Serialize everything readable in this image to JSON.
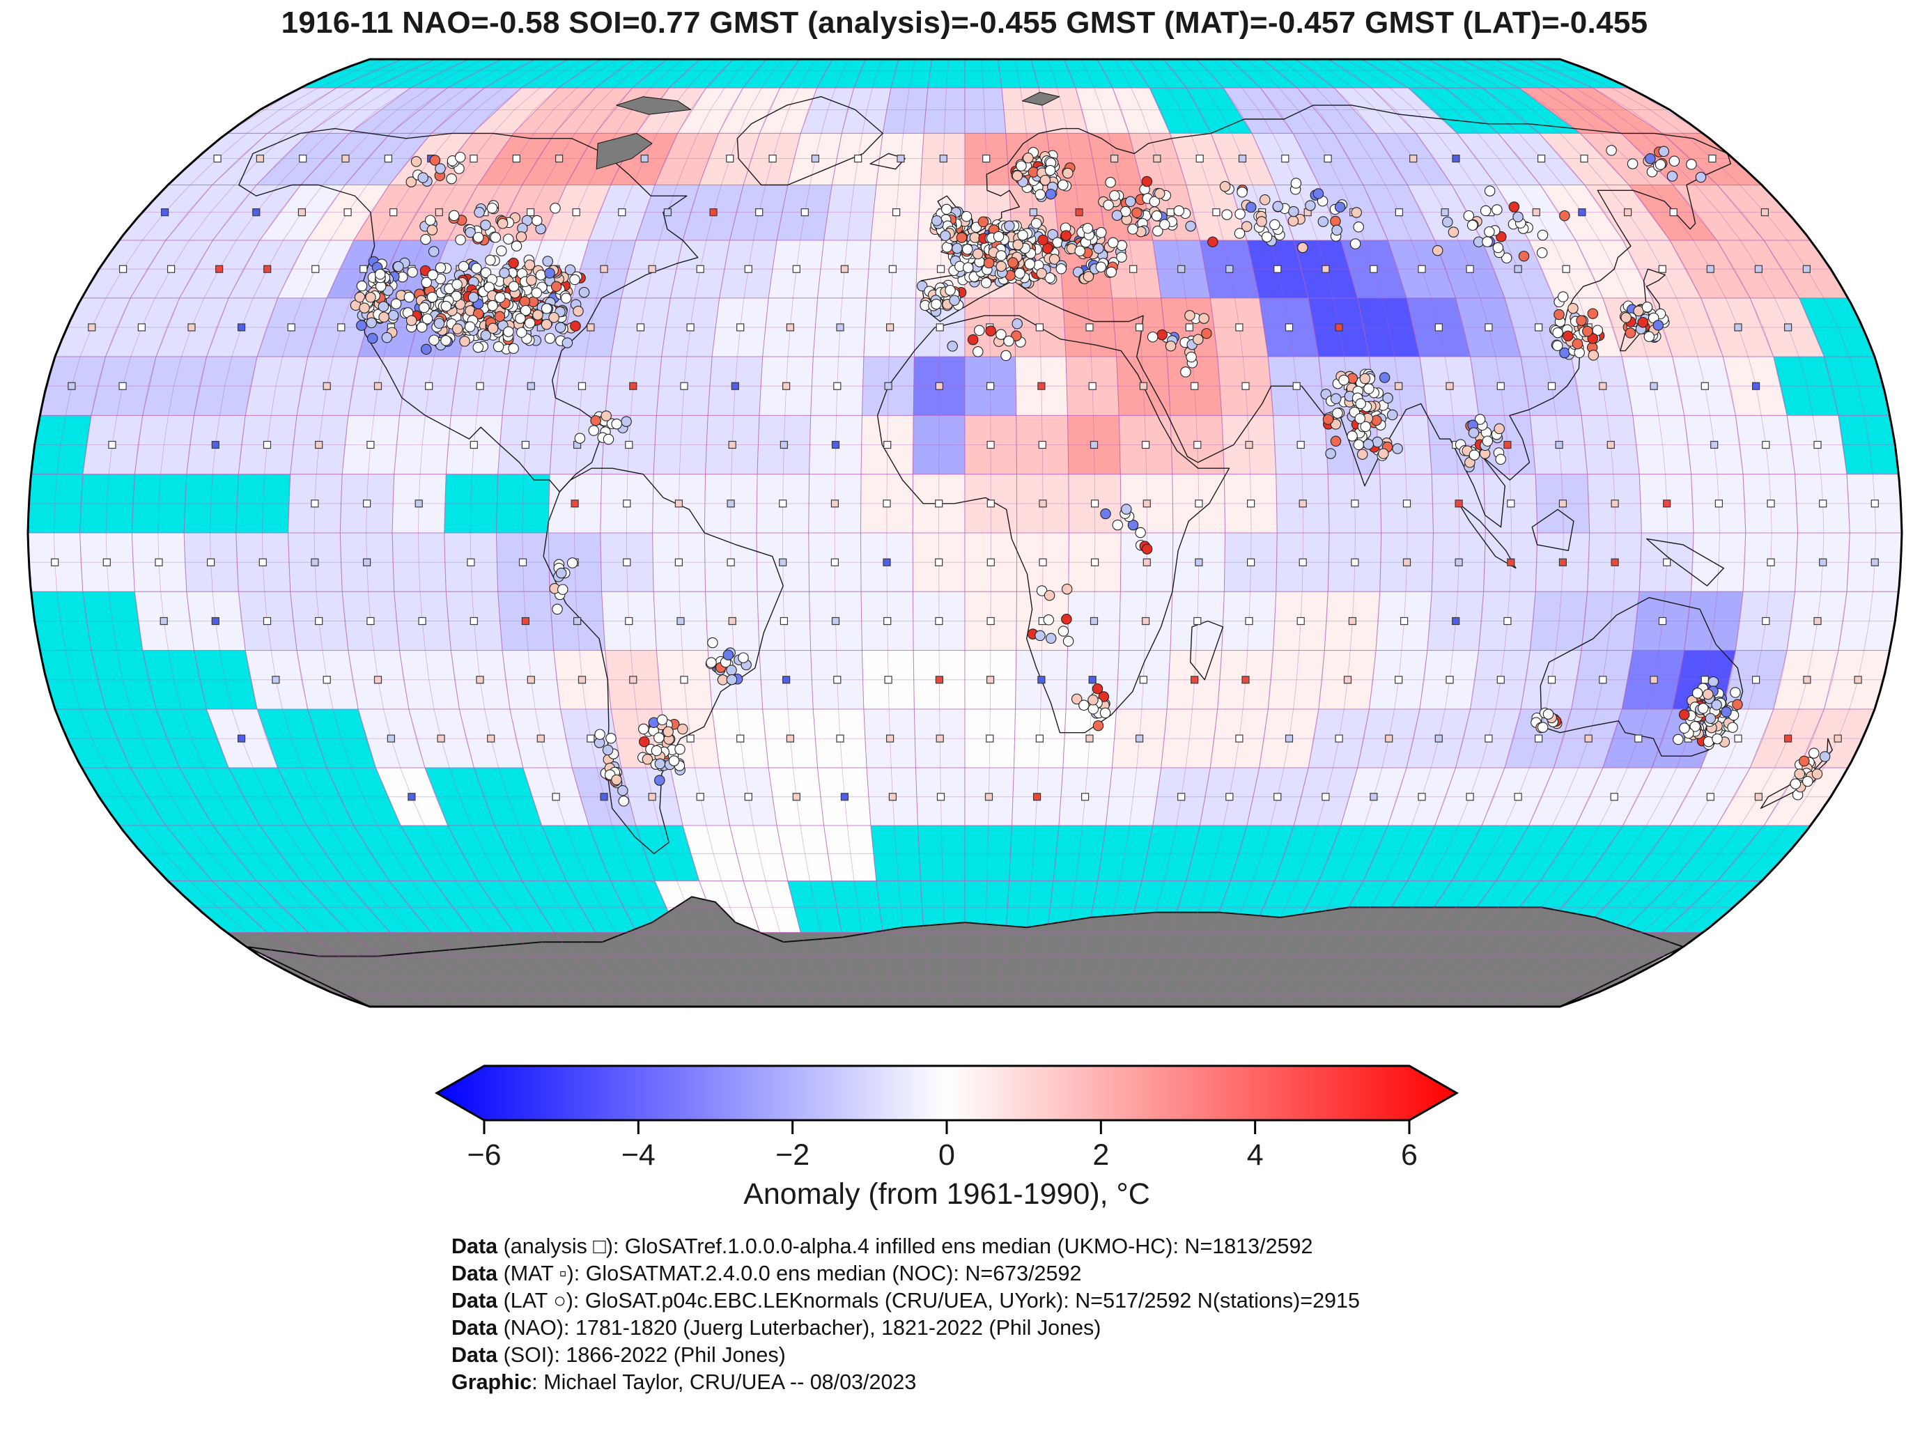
{
  "title": "1916-11 NAO=-0.58 SOI=0.77 GMST (analysis)=-0.455 GMST (MAT)=-0.457 GMST (LAT)=-0.455",
  "colorbar": {
    "label": "Anomaly (from 1961-1990), °C",
    "min": -6,
    "max": 6,
    "tick_values": [
      -6,
      -4,
      -2,
      0,
      2,
      4,
      6
    ],
    "tick_labels": [
      "−6",
      "−4",
      "−2",
      "0",
      "2",
      "4",
      "6"
    ],
    "color_negative": "#0000ff",
    "color_zero": "#ffffff",
    "color_positive": "#ff0000",
    "missing_color": "#00e6e6",
    "no_data_land_color": "#7c7c7c"
  },
  "footer": {
    "lines": [
      {
        "prefix": "Data",
        "text": " (analysis □): GloSATref.1.0.0.0-alpha.4 infilled ens median (UKMO-HC): N=1813/2592"
      },
      {
        "prefix": "Data",
        "text": " (MAT ▫): GloSATMAT.2.4.0.0 ens median (NOC): N=673/2592"
      },
      {
        "prefix": "Data",
        "text": " (LAT ○): GloSAT.p04c.EBC.LEKnormals (CRU/UEA, UYork): N=517/2592 N(stations)=2915"
      },
      {
        "prefix": "Data",
        "text": " (NAO): 1781-1820 (Juerg Luterbacher), 1821-2022 (Phil Jones)"
      },
      {
        "prefix": "Data",
        "text": " (SOI): 1866-2022 (Phil Jones)"
      },
      {
        "prefix": "Graphic",
        "text": ": Michael Taylor, CRU/UEA -- 08/03/2023"
      }
    ]
  },
  "chart_data": {
    "type": "heatmap",
    "subtype": "global-gridded-anomaly-map",
    "projection": "robinson-like",
    "title": "1916-11 NAO=-0.58 SOI=0.77 GMST (analysis)=-0.455 GMST (MAT)=-0.457 GMST (LAT)=-0.455",
    "anomaly_units": "°C vs 1961-1990",
    "value_range": [
      -6,
      6
    ],
    "grid": {
      "lon_step_deg": 10,
      "lat_step_deg": 10,
      "origin": "row 0 = 80-90N band, col 0 = 180W-170W",
      "code_values": {
        "a": -5,
        "b": -4,
        "c": -3,
        "d": -2,
        "e": -1.2,
        "f": -0.7,
        "g": -0.3,
        "h": -0.03,
        "i": 0.35,
        "j": 0.8,
        "k": 1.4,
        "l": 2.2,
        "m": 3,
        "n": 4,
        "X": "missing (cyan)",
        "G": "no-data land (gray)"
      },
      "rows": [
        "XXXXXXXXXXXXXXXXXXXXXXXXXXXXXXXXXXXX",
        "fffeeejkkkjiiiffeeejjiiXXeeeffXXXllk",
        "ffeeejkllllkjjiiijllllkjjfeeefffjkll",
        "fffgikkkkjfeeeefiijkllkjffeeffgijlkk",
        "ffffgddeggefffgggijklkdcbbcddeiijkkk",
        "ffffeeddeeeffggggfkklllkcbbcdeijjjjX",
        "eeeeffffffffffggecdikllkeeefeefggiXX",
        "XfffffgggffffffgidkklkkjfefeeffggggX",
        "XXXXXffgXXggggggiijjjiiifffffefggggg",
        "gggffffffeefgggggiiiiggfffffffffgggg",
        "XXggfffffeegggggggiiggggiigffeeddfgg",
        "XXXXggggggijiggghhhgggiiiiggffecbeii",
        "XXXgXXggggfjihhhgghhhiiiiffffeeddgjj",
        "XXXXXXhXXgefgghhggggggffffggggggggii",
        "XXXXXXXXXXXXhhhhXXXXXXXXXXXXXXXXXXXX",
        "XXXXXXXXXXXhhhXXXXXXXXXXXXXXXXXXXXXX",
        "GGGGGGGGGGGGGGGGGGGGGGGGGGGGGGGGGGGG",
        "GGGGGGGGGGGGGGGGGGGGGGGGGGGGGGGGGGGG"
      ]
    },
    "station_clusters": [
      [
        -97,
        39,
        22,
        8,
        420
      ],
      [
        -120,
        41,
        4,
        6,
        80
      ],
      [
        -106,
        53,
        18,
        5,
        40
      ],
      [
        -122,
        63,
        8,
        4,
        14
      ],
      [
        8,
        48,
        13,
        6,
        320
      ],
      [
        18,
        62,
        7,
        5,
        90
      ],
      [
        -3,
        53,
        4,
        3,
        60
      ],
      [
        -5,
        40,
        5,
        3,
        35
      ],
      [
        26,
        48,
        8,
        6,
        60
      ],
      [
        40,
        56,
        10,
        6,
        40
      ],
      [
        70,
        55,
        22,
        8,
        45
      ],
      [
        115,
        52,
        18,
        8,
        30
      ],
      [
        160,
        64,
        12,
        5,
        14
      ],
      [
        137,
        36,
        5,
        3,
        55
      ],
      [
        122,
        34,
        6,
        8,
        40
      ],
      [
        77,
        20,
        7,
        9,
        85
      ],
      [
        100,
        15,
        6,
        6,
        25
      ],
      [
        148,
        -31,
        6,
        6,
        100
      ],
      [
        116,
        -32,
        3,
        2,
        12
      ],
      [
        172,
        -41,
        3,
        4,
        20
      ],
      [
        -61,
        -36,
        5,
        7,
        42
      ],
      [
        -72,
        -40,
        2,
        8,
        22
      ],
      [
        -47,
        -22,
        5,
        5,
        18
      ],
      [
        26,
        -29,
        5,
        4,
        16
      ],
      [
        45,
        32,
        9,
        6,
        18
      ],
      [
        5,
        33,
        10,
        4,
        12
      ],
      [
        -70,
        19,
        9,
        4,
        14
      ],
      [
        -78,
        -8,
        3,
        6,
        10
      ],
      [
        32,
        0,
        6,
        8,
        10
      ],
      [
        18,
        -15,
        6,
        8,
        10
      ]
    ],
    "legend_markers": {
      "analysis_cell_marker": "open square □",
      "mat_cell_marker": "small open square ▫",
      "lat_station_marker": "open circle ○"
    }
  }
}
